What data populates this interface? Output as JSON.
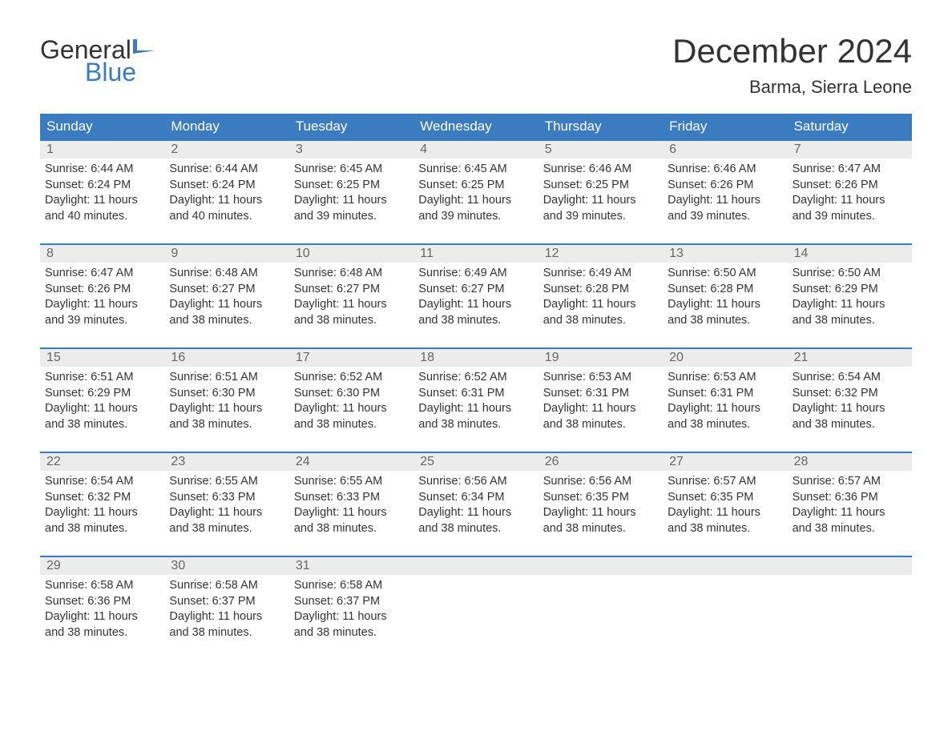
{
  "logo": {
    "top": "General",
    "bottom": "Blue",
    "flag_color": "#3b7bbf"
  },
  "title": "December 2024",
  "location": "Barma, Sierra Leone",
  "colors": {
    "header_bg": "#3b7bbf",
    "header_text": "#ffffff",
    "daynum_bg": "#ececec",
    "daynum_text": "#666666",
    "body_text": "#333333",
    "week_border": "#3b7bbf"
  },
  "weekdays": [
    "Sunday",
    "Monday",
    "Tuesday",
    "Wednesday",
    "Thursday",
    "Friday",
    "Saturday"
  ],
  "weeks": [
    [
      {
        "num": "1",
        "sunrise": "Sunrise: 6:44 AM",
        "sunset": "Sunset: 6:24 PM",
        "daylight1": "Daylight: 11 hours",
        "daylight2": "and 40 minutes."
      },
      {
        "num": "2",
        "sunrise": "Sunrise: 6:44 AM",
        "sunset": "Sunset: 6:24 PM",
        "daylight1": "Daylight: 11 hours",
        "daylight2": "and 40 minutes."
      },
      {
        "num": "3",
        "sunrise": "Sunrise: 6:45 AM",
        "sunset": "Sunset: 6:25 PM",
        "daylight1": "Daylight: 11 hours",
        "daylight2": "and 39 minutes."
      },
      {
        "num": "4",
        "sunrise": "Sunrise: 6:45 AM",
        "sunset": "Sunset: 6:25 PM",
        "daylight1": "Daylight: 11 hours",
        "daylight2": "and 39 minutes."
      },
      {
        "num": "5",
        "sunrise": "Sunrise: 6:46 AM",
        "sunset": "Sunset: 6:25 PM",
        "daylight1": "Daylight: 11 hours",
        "daylight2": "and 39 minutes."
      },
      {
        "num": "6",
        "sunrise": "Sunrise: 6:46 AM",
        "sunset": "Sunset: 6:26 PM",
        "daylight1": "Daylight: 11 hours",
        "daylight2": "and 39 minutes."
      },
      {
        "num": "7",
        "sunrise": "Sunrise: 6:47 AM",
        "sunset": "Sunset: 6:26 PM",
        "daylight1": "Daylight: 11 hours",
        "daylight2": "and 39 minutes."
      }
    ],
    [
      {
        "num": "8",
        "sunrise": "Sunrise: 6:47 AM",
        "sunset": "Sunset: 6:26 PM",
        "daylight1": "Daylight: 11 hours",
        "daylight2": "and 39 minutes."
      },
      {
        "num": "9",
        "sunrise": "Sunrise: 6:48 AM",
        "sunset": "Sunset: 6:27 PM",
        "daylight1": "Daylight: 11 hours",
        "daylight2": "and 38 minutes."
      },
      {
        "num": "10",
        "sunrise": "Sunrise: 6:48 AM",
        "sunset": "Sunset: 6:27 PM",
        "daylight1": "Daylight: 11 hours",
        "daylight2": "and 38 minutes."
      },
      {
        "num": "11",
        "sunrise": "Sunrise: 6:49 AM",
        "sunset": "Sunset: 6:27 PM",
        "daylight1": "Daylight: 11 hours",
        "daylight2": "and 38 minutes."
      },
      {
        "num": "12",
        "sunrise": "Sunrise: 6:49 AM",
        "sunset": "Sunset: 6:28 PM",
        "daylight1": "Daylight: 11 hours",
        "daylight2": "and 38 minutes."
      },
      {
        "num": "13",
        "sunrise": "Sunrise: 6:50 AM",
        "sunset": "Sunset: 6:28 PM",
        "daylight1": "Daylight: 11 hours",
        "daylight2": "and 38 minutes."
      },
      {
        "num": "14",
        "sunrise": "Sunrise: 6:50 AM",
        "sunset": "Sunset: 6:29 PM",
        "daylight1": "Daylight: 11 hours",
        "daylight2": "and 38 minutes."
      }
    ],
    [
      {
        "num": "15",
        "sunrise": "Sunrise: 6:51 AM",
        "sunset": "Sunset: 6:29 PM",
        "daylight1": "Daylight: 11 hours",
        "daylight2": "and 38 minutes."
      },
      {
        "num": "16",
        "sunrise": "Sunrise: 6:51 AM",
        "sunset": "Sunset: 6:30 PM",
        "daylight1": "Daylight: 11 hours",
        "daylight2": "and 38 minutes."
      },
      {
        "num": "17",
        "sunrise": "Sunrise: 6:52 AM",
        "sunset": "Sunset: 6:30 PM",
        "daylight1": "Daylight: 11 hours",
        "daylight2": "and 38 minutes."
      },
      {
        "num": "18",
        "sunrise": "Sunrise: 6:52 AM",
        "sunset": "Sunset: 6:31 PM",
        "daylight1": "Daylight: 11 hours",
        "daylight2": "and 38 minutes."
      },
      {
        "num": "19",
        "sunrise": "Sunrise: 6:53 AM",
        "sunset": "Sunset: 6:31 PM",
        "daylight1": "Daylight: 11 hours",
        "daylight2": "and 38 minutes."
      },
      {
        "num": "20",
        "sunrise": "Sunrise: 6:53 AM",
        "sunset": "Sunset: 6:31 PM",
        "daylight1": "Daylight: 11 hours",
        "daylight2": "and 38 minutes."
      },
      {
        "num": "21",
        "sunrise": "Sunrise: 6:54 AM",
        "sunset": "Sunset: 6:32 PM",
        "daylight1": "Daylight: 11 hours",
        "daylight2": "and 38 minutes."
      }
    ],
    [
      {
        "num": "22",
        "sunrise": "Sunrise: 6:54 AM",
        "sunset": "Sunset: 6:32 PM",
        "daylight1": "Daylight: 11 hours",
        "daylight2": "and 38 minutes."
      },
      {
        "num": "23",
        "sunrise": "Sunrise: 6:55 AM",
        "sunset": "Sunset: 6:33 PM",
        "daylight1": "Daylight: 11 hours",
        "daylight2": "and 38 minutes."
      },
      {
        "num": "24",
        "sunrise": "Sunrise: 6:55 AM",
        "sunset": "Sunset: 6:33 PM",
        "daylight1": "Daylight: 11 hours",
        "daylight2": "and 38 minutes."
      },
      {
        "num": "25",
        "sunrise": "Sunrise: 6:56 AM",
        "sunset": "Sunset: 6:34 PM",
        "daylight1": "Daylight: 11 hours",
        "daylight2": "and 38 minutes."
      },
      {
        "num": "26",
        "sunrise": "Sunrise: 6:56 AM",
        "sunset": "Sunset: 6:35 PM",
        "daylight1": "Daylight: 11 hours",
        "daylight2": "and 38 minutes."
      },
      {
        "num": "27",
        "sunrise": "Sunrise: 6:57 AM",
        "sunset": "Sunset: 6:35 PM",
        "daylight1": "Daylight: 11 hours",
        "daylight2": "and 38 minutes."
      },
      {
        "num": "28",
        "sunrise": "Sunrise: 6:57 AM",
        "sunset": "Sunset: 6:36 PM",
        "daylight1": "Daylight: 11 hours",
        "daylight2": "and 38 minutes."
      }
    ],
    [
      {
        "num": "29",
        "sunrise": "Sunrise: 6:58 AM",
        "sunset": "Sunset: 6:36 PM",
        "daylight1": "Daylight: 11 hours",
        "daylight2": "and 38 minutes."
      },
      {
        "num": "30",
        "sunrise": "Sunrise: 6:58 AM",
        "sunset": "Sunset: 6:37 PM",
        "daylight1": "Daylight: 11 hours",
        "daylight2": "and 38 minutes."
      },
      {
        "num": "31",
        "sunrise": "Sunrise: 6:58 AM",
        "sunset": "Sunset: 6:37 PM",
        "daylight1": "Daylight: 11 hours",
        "daylight2": "and 38 minutes."
      },
      {
        "empty": true
      },
      {
        "empty": true
      },
      {
        "empty": true
      },
      {
        "empty": true
      }
    ]
  ]
}
